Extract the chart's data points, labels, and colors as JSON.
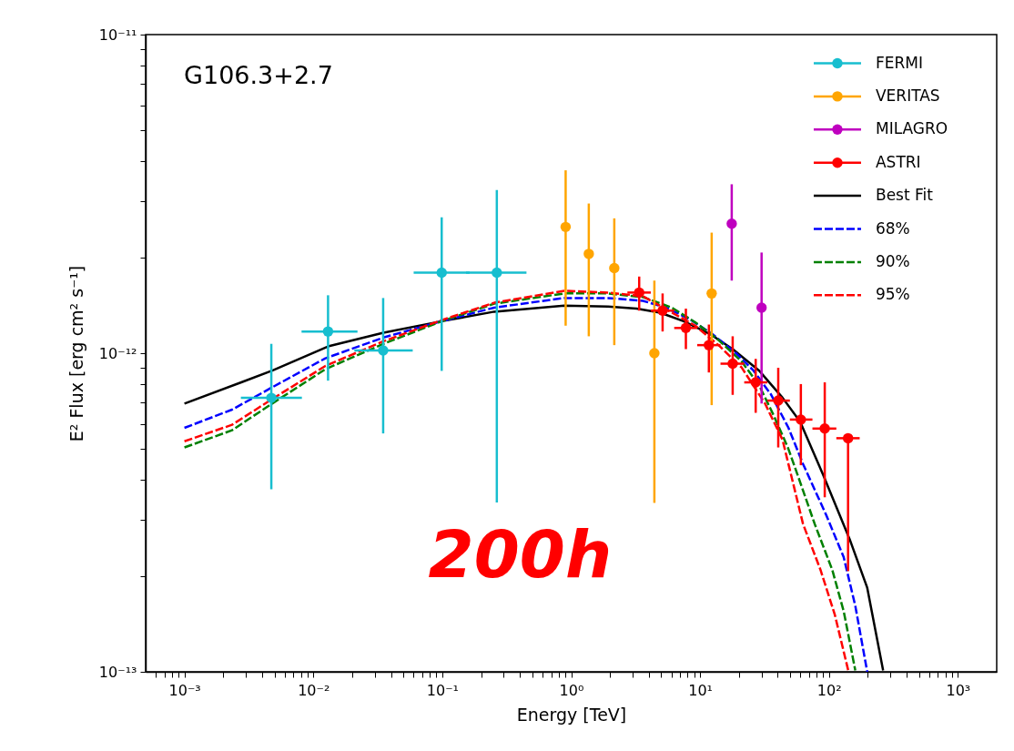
{
  "chart_data": {
    "type": "scatter",
    "xlabel": "Energy [TeV]",
    "ylabel": "E² Flux [erg cm² s⁻¹]",
    "log": "xy",
    "grid": false,
    "legend": "top right",
    "annotations": [
      "G106.3+2.7",
      "200h"
    ],
    "xlim": [
      0.0005,
      2000
    ],
    "ylim": [
      1e-13,
      1e-11
    ],
    "xticks": [
      {
        "value": 0.0006,
        "label": null
      },
      {
        "value": 0.0007,
        "label": null
      },
      {
        "value": 0.0008,
        "label": null
      },
      {
        "value": 0.0009,
        "label": null
      },
      {
        "value": 0.001,
        "label": "10⁻³"
      },
      {
        "value": 0.002,
        "label": null
      },
      {
        "value": 0.003,
        "label": null
      },
      {
        "value": 0.004,
        "label": null
      },
      {
        "value": 0.005,
        "label": null
      },
      {
        "value": 0.006,
        "label": null
      },
      {
        "value": 0.007,
        "label": null
      },
      {
        "value": 0.008,
        "label": null
      },
      {
        "value": 0.009,
        "label": null
      },
      {
        "value": 0.01,
        "label": "10⁻²"
      },
      {
        "value": 0.02,
        "label": null
      },
      {
        "value": 0.03,
        "label": null
      },
      {
        "value": 0.04,
        "label": null
      },
      {
        "value": 0.05,
        "label": null
      },
      {
        "value": 0.06,
        "label": null
      },
      {
        "value": 0.07,
        "label": null
      },
      {
        "value": 0.08,
        "label": null
      },
      {
        "value": 0.09,
        "label": null
      },
      {
        "value": 0.1,
        "label": "10⁻¹"
      },
      {
        "value": 0.2,
        "label": null
      },
      {
        "value": 0.3,
        "label": null
      },
      {
        "value": 0.4,
        "label": null
      },
      {
        "value": 0.5,
        "label": null
      },
      {
        "value": 0.6,
        "label": null
      },
      {
        "value": 0.7,
        "label": null
      },
      {
        "value": 0.8,
        "label": null
      },
      {
        "value": 0.9,
        "label": null
      },
      {
        "value": 1,
        "label": "10⁰"
      },
      {
        "value": 2,
        "label": null
      },
      {
        "value": 3,
        "label": null
      },
      {
        "value": 4,
        "label": null
      },
      {
        "value": 5,
        "label": null
      },
      {
        "value": 6,
        "label": null
      },
      {
        "value": 7,
        "label": null
      },
      {
        "value": 8,
        "label": null
      },
      {
        "value": 9,
        "label": null
      },
      {
        "value": 10,
        "label": "10¹"
      },
      {
        "value": 20,
        "label": null
      },
      {
        "value": 30,
        "label": null
      },
      {
        "value": 40,
        "label": null
      },
      {
        "value": 50,
        "label": null
      },
      {
        "value": 60,
        "label": null
      },
      {
        "value": 70,
        "label": null
      },
      {
        "value": 80,
        "label": null
      },
      {
        "value": 90,
        "label": null
      },
      {
        "value": 100,
        "label": "10²"
      },
      {
        "value": 200,
        "label": null
      },
      {
        "value": 300,
        "label": null
      },
      {
        "value": 400,
        "label": null
      },
      {
        "value": 500,
        "label": null
      },
      {
        "value": 600,
        "label": null
      },
      {
        "value": 700,
        "label": null
      },
      {
        "value": 800,
        "label": null
      },
      {
        "value": 900,
        "label": null
      },
      {
        "value": 1000,
        "label": "10³"
      }
    ],
    "yticks": [
      {
        "value": 1e-13,
        "label": "10⁻¹³"
      },
      {
        "value": 2e-13,
        "label": null
      },
      {
        "value": 3e-13,
        "label": null
      },
      {
        "value": 4e-13,
        "label": null
      },
      {
        "value": 5e-13,
        "label": null
      },
      {
        "value": 6e-13,
        "label": null
      },
      {
        "value": 7e-13,
        "label": null
      },
      {
        "value": 8e-13,
        "label": null
      },
      {
        "value": 9e-13,
        "label": null
      },
      {
        "value": 1e-12,
        "label": "10⁻¹²"
      },
      {
        "value": 2e-12,
        "label": null
      },
      {
        "value": 3e-12,
        "label": null
      },
      {
        "value": 4e-12,
        "label": null
      },
      {
        "value": 5e-12,
        "label": null
      },
      {
        "value": 6e-12,
        "label": null
      },
      {
        "value": 7e-12,
        "label": null
      },
      {
        "value": 8e-12,
        "label": null
      },
      {
        "value": 9e-12,
        "label": null
      },
      {
        "value": 1e-11,
        "label": "10⁻¹¹"
      }
    ],
    "series": [
      {
        "name": "FERMI",
        "marker": "circle",
        "color": "#17becf",
        "x": [
          0.00472,
          0.013,
          0.0348,
          0.099,
          0.265
        ],
        "values": [
          7.24e-13,
          1.17e-12,
          1.02e-12,
          1.79e-12,
          1.79e-12
        ],
        "errors": [
          [
            3.74e-13,
            1.07e-12
          ],
          [
            8.2e-13,
            1.52e-12
          ],
          [
            5.6e-13,
            1.49e-12
          ],
          [
            8.8e-13,
            2.67e-12
          ],
          [
            3.4e-13,
            3.25e-12
          ]
        ],
        "xerrors": [
          [
            0.00274,
            0.00815
          ],
          [
            0.0081,
            0.022
          ],
          [
            0.0208,
            0.059
          ],
          [
            0.06,
            0.163
          ],
          [
            0.153,
            0.45
          ]
        ]
      },
      {
        "name": "VERITAS",
        "marker": "circle",
        "color": "#ffa500",
        "x": [
          0.906,
          1.37,
          2.16,
          4.42,
          12.3
        ],
        "values": [
          2.49e-12,
          2.05e-12,
          1.85e-12,
          1e-12,
          1.54e-12
        ],
        "errors": [
          [
            1.22e-12,
            3.75e-12
          ],
          [
            1.13e-12,
            2.95e-12
          ],
          [
            1.06e-12,
            2.65e-12
          ],
          [
            3.39e-13,
            1.69e-12
          ],
          [
            6.87e-13,
            2.39e-12
          ]
        ]
      },
      {
        "name": "MILAGRO",
        "marker": "circle",
        "color": "#bf00bf",
        "x": [
          17.6,
          30
        ],
        "values": [
          2.55e-12,
          1.39e-12
        ],
        "errors": [
          [
            1.69e-12,
            3.39e-12
          ],
          [
            6.95e-13,
            2.07e-12
          ]
        ]
      },
      {
        "name": "ASTRI",
        "marker": "circle",
        "color": "#ff0000",
        "x": [
          3.37,
          5.12,
          7.76,
          11.7,
          17.9,
          27.0,
          40.4,
          60.5,
          92.7,
          140.6
        ],
        "values": [
          1.55e-12,
          1.36e-12,
          1.2e-12,
          1.06e-12,
          9.27e-13,
          8.1e-13,
          7.1e-13,
          6.19e-13,
          5.8e-13,
          5.41e-13
        ],
        "errors": [
          [
            1.36e-12,
            1.74e-12
          ],
          [
            1.17e-12,
            1.54e-12
          ],
          [
            1.03e-12,
            1.38e-12
          ],
          [
            8.7e-13,
            1.23e-12
          ],
          [
            7.4e-13,
            1.13e-12
          ],
          [
            6.5e-13,
            9.6e-13
          ],
          [
            5.06e-13,
            9e-13
          ],
          [
            4.45e-13,
            8e-13
          ],
          [
            3.53e-13,
            8.1e-13
          ],
          [
            2.07e-13,
            5.41e-13
          ]
        ],
        "xerrors": [
          [
            2.73,
            4.15
          ],
          [
            4.15,
            6.3
          ],
          [
            6.3,
            9.5
          ],
          [
            9.5,
            14.4
          ],
          [
            14.4,
            22.0
          ],
          [
            22.0,
            33.2
          ],
          [
            33.2,
            49.7
          ],
          [
            49.7,
            74.4
          ],
          [
            74.4,
            114
          ],
          [
            114,
            173
          ]
        ]
      },
      {
        "name": "Best Fit",
        "type": "line",
        "line_style": "solid",
        "color": "#000000",
        "x": [
          0.001,
          0.00273,
          0.00484,
          0.013,
          0.035,
          0.099,
          0.253,
          0.883,
          1.93,
          3.22,
          4.91,
          7.45,
          11.9,
          17.9,
          28.6,
          43.6,
          59.7,
          90.6,
          144.5,
          197.7,
          263
        ],
        "values": [
          6.95e-13,
          8.09e-13,
          8.83e-13,
          1.05e-12,
          1.16e-12,
          1.26e-12,
          1.35e-12,
          1.41e-12,
          1.4e-12,
          1.38e-12,
          1.34e-12,
          1.26e-12,
          1.15e-12,
          1.03e-12,
          8.83e-13,
          7.25e-13,
          6.1e-13,
          4.13e-13,
          2.61e-13,
          1.84e-13,
          1.01e-13
        ]
      },
      {
        "name": "68%",
        "type": "line",
        "line_style": "dashed",
        "color": "#0000ff",
        "x": [
          0.001,
          0.00234,
          0.00459,
          0.0124,
          0.035,
          0.099,
          0.253,
          0.883,
          1.93,
          3.6,
          5.45,
          8.26,
          12.4,
          19.0,
          25.9,
          35.5,
          48.5,
          62.9,
          95.3,
          130,
          160,
          198
        ],
        "values": [
          5.83e-13,
          6.65e-13,
          7.74e-13,
          9.64e-13,
          1.12e-12,
          1.26e-12,
          1.39e-12,
          1.49e-12,
          1.49e-12,
          1.46e-12,
          1.39e-12,
          1.28e-12,
          1.15e-12,
          1e-12,
          8.83e-13,
          7.42e-13,
          5.83e-13,
          4.49e-13,
          3.1e-13,
          2.29e-13,
          1.61e-13,
          1e-13
        ]
      },
      {
        "name": "90%",
        "type": "line",
        "line_style": "dashed",
        "color": "#008000",
        "x": [
          0.001,
          0.00234,
          0.00459,
          0.0124,
          0.035,
          0.099,
          0.253,
          0.883,
          1.93,
          3.6,
          6.04,
          9.17,
          13.9,
          21.0,
          28.8,
          37.3,
          48.4,
          59.7,
          77.5,
          106,
          130,
          160
        ],
        "values": [
          5.06e-13,
          5.73e-13,
          6.87e-13,
          8.91e-13,
          1.07e-12,
          1.26e-12,
          1.43e-12,
          1.54e-12,
          1.54e-12,
          1.5e-12,
          1.39e-12,
          1.25e-12,
          1.1e-12,
          9.42e-13,
          7.91e-13,
          6.37e-13,
          5.01e-13,
          3.94e-13,
          2.91e-13,
          2.09e-13,
          1.55e-13,
          1.01e-13
        ]
      },
      {
        "name": "95%",
        "type": "line",
        "line_style": "dashed",
        "color": "#ff0000",
        "x": [
          0.001,
          0.00234,
          0.00459,
          0.0124,
          0.035,
          0.099,
          0.253,
          0.883,
          1.93,
          3.6,
          9.17,
          13.9,
          21.0,
          31.9,
          43.6,
          62.9,
          85.9,
          111,
          141
        ],
        "values": [
          5.29e-13,
          5.96e-13,
          7.1e-13,
          9.12e-13,
          1.09e-12,
          1.27e-12,
          1.44e-12,
          1.57e-12,
          1.55e-12,
          1.51e-12,
          1.22e-12,
          1.06e-12,
          9.02e-13,
          6.95e-13,
          5.35e-13,
          2.91e-13,
          2.09e-13,
          1.51e-13,
          1.01e-13
        ]
      }
    ]
  }
}
